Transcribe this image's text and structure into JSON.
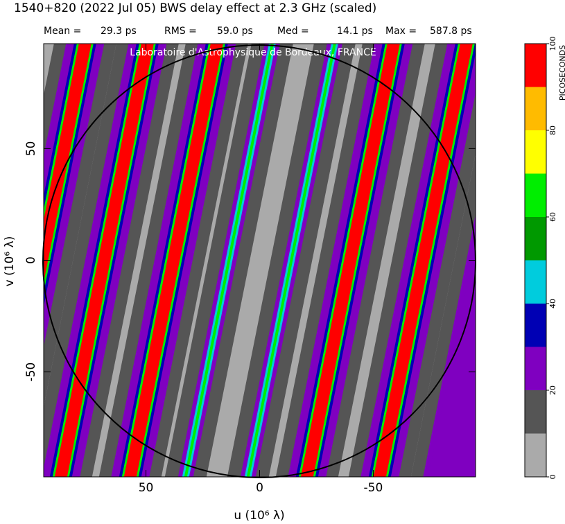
{
  "chart_data": {
    "type": "heatmap",
    "title": "1540+820  (2022 Jul 05)   BWS delay effect at  2.3 GHz (scaled)",
    "stats": [
      {
        "label": "Mean =",
        "value": "29.3 ps"
      },
      {
        "label": "RMS =",
        "value": "59.0 ps"
      },
      {
        "label": "Med =",
        "value": "14.1 ps"
      },
      {
        "label": "Max =",
        "value": "587.8 ps"
      }
    ],
    "watermark": "Laboratoire d'Astrophysique de Bordeaux, FRANCE",
    "x_label": "u  (10⁶ λ)",
    "y_label": "v  (10⁶ λ)",
    "xlim": [
      95,
      -95
    ],
    "xticks": [
      50,
      0,
      -50
    ],
    "ylim": [
      -97,
      97
    ],
    "yticks": [
      -50,
      0,
      50
    ],
    "colorbar": {
      "label": "PICOSECONDS",
      "levels": [
        0,
        10,
        20,
        30,
        40,
        50,
        60,
        70,
        80,
        90,
        100
      ],
      "colors": [
        "#aaaaaa",
        "#555555",
        "#7f00c0",
        "#0000b4",
        "#00ccdd",
        "#009900",
        "#00ee00",
        "#ffff00",
        "#ffbb00",
        "#ff0000"
      ],
      "ticks": [
        0,
        20,
        40,
        60,
        80,
        100
      ]
    }
  }
}
